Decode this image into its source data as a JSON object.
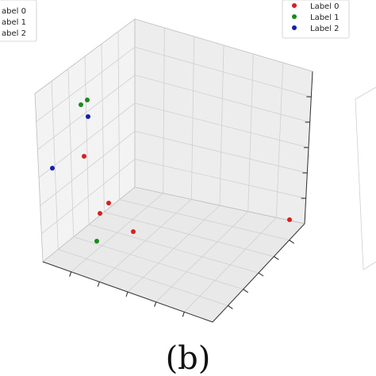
{
  "caption": "(b)",
  "colors": {
    "label0": "#d62020",
    "label1": "#1a8a1a",
    "label2": "#1020b0"
  },
  "legend_main": [
    {
      "label": "Label 0",
      "color": "#d62020"
    },
    {
      "label": "Label 1",
      "color": "#1a8a1a"
    },
    {
      "label": "Label 2",
      "color": "#1020b0"
    }
  ],
  "legend_left_partial": [
    "abel 0",
    "abel 1",
    "abel 2"
  ],
  "chart_data": {
    "type": "scatter",
    "title": "",
    "xlabel": "",
    "ylabel": "",
    "zlabel": "",
    "grid": true,
    "legend": "top-right",
    "series": [
      {
        "name": "Label 0",
        "color": "#d62020",
        "points": [
          [
            106,
            197
          ],
          [
            137,
            256
          ],
          [
            126,
            269
          ],
          [
            168,
            292
          ],
          [
            365,
            277
          ]
        ]
      },
      {
        "name": "Label 1",
        "color": "#1a8a1a",
        "points": [
          [
            110,
            126
          ],
          [
            102,
            132
          ],
          [
            122,
            304
          ]
        ]
      },
      {
        "name": "Label 2",
        "color": "#1020b0",
        "points": [
          [
            111,
            147
          ],
          [
            66,
            212
          ]
        ]
      }
    ]
  }
}
